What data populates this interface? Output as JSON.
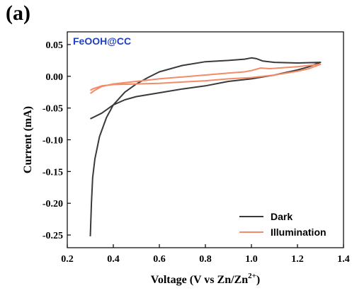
{
  "panel_label": "(a)",
  "chart_data": {
    "type": "line",
    "title": "",
    "annotation": "FeOOH@CC",
    "xlabel_main": "Voltage (V vs Zn/Zn",
    "xlabel_sup": "2+",
    "xlabel_end": ")",
    "ylabel": "Current (mA)",
    "xlim": [
      0.2,
      1.4
    ],
    "ylim": [
      -0.27,
      0.07
    ],
    "xticks": [
      0.2,
      0.4,
      0.6,
      0.8,
      1.0,
      1.2,
      1.4
    ],
    "xtick_labels": [
      "0.2",
      "0.4",
      "0.6",
      "0.8",
      "1.0",
      "1.2",
      "1.4"
    ],
    "yticks": [
      0.05,
      0.0,
      -0.05,
      -0.1,
      -0.15,
      -0.2,
      -0.25
    ],
    "ytick_labels": [
      "0.05",
      "0.00",
      "-0.05",
      "-0.10",
      "-0.15",
      "-0.20",
      "-0.25"
    ],
    "grid": false,
    "legend_position": "bottom-right",
    "series": [
      {
        "name": "Dark",
        "color": "#3a3a3a",
        "points": [
          [
            0.3,
            -0.252
          ],
          [
            0.305,
            -0.2
          ],
          [
            0.31,
            -0.16
          ],
          [
            0.32,
            -0.13
          ],
          [
            0.34,
            -0.095
          ],
          [
            0.37,
            -0.065
          ],
          [
            0.4,
            -0.045
          ],
          [
            0.45,
            -0.025
          ],
          [
            0.5,
            -0.012
          ],
          [
            0.55,
            -0.002
          ],
          [
            0.6,
            0.007
          ],
          [
            0.7,
            0.017
          ],
          [
            0.8,
            0.023
          ],
          [
            0.9,
            0.025
          ],
          [
            0.97,
            0.027
          ],
          [
            1.0,
            0.029
          ],
          [
            1.02,
            0.028
          ],
          [
            1.05,
            0.024
          ],
          [
            1.1,
            0.022
          ],
          [
            1.2,
            0.021
          ],
          [
            1.3,
            0.022
          ],
          [
            1.25,
            0.015
          ],
          [
            1.2,
            0.01
          ],
          [
            1.1,
            0.002
          ],
          [
            1.0,
            -0.004
          ],
          [
            0.9,
            -0.008
          ],
          [
            0.8,
            -0.015
          ],
          [
            0.7,
            -0.02
          ],
          [
            0.6,
            -0.026
          ],
          [
            0.5,
            -0.032
          ],
          [
            0.45,
            -0.037
          ],
          [
            0.4,
            -0.045
          ],
          [
            0.35,
            -0.058
          ],
          [
            0.3,
            -0.067
          ]
        ]
      },
      {
        "name": "Illumination",
        "color": "#f28c68",
        "points": [
          [
            0.3,
            -0.027
          ],
          [
            0.32,
            -0.022
          ],
          [
            0.35,
            -0.016
          ],
          [
            0.4,
            -0.012
          ],
          [
            0.5,
            -0.008
          ],
          [
            0.6,
            -0.004
          ],
          [
            0.7,
            -0.001
          ],
          [
            0.8,
            0.002
          ],
          [
            0.9,
            0.005
          ],
          [
            0.97,
            0.007
          ],
          [
            1.0,
            0.009
          ],
          [
            1.04,
            0.013
          ],
          [
            1.08,
            0.012
          ],
          [
            1.2,
            0.015
          ],
          [
            1.3,
            0.019
          ],
          [
            1.25,
            0.012
          ],
          [
            1.2,
            0.008
          ],
          [
            1.1,
            0.002
          ],
          [
            1.0,
            -0.002
          ],
          [
            0.9,
            -0.004
          ],
          [
            0.8,
            -0.007
          ],
          [
            0.7,
            -0.009
          ],
          [
            0.6,
            -0.011
          ],
          [
            0.5,
            -0.012
          ],
          [
            0.4,
            -0.013
          ],
          [
            0.35,
            -0.015
          ],
          [
            0.31,
            -0.02
          ],
          [
            0.3,
            -0.022
          ]
        ]
      }
    ]
  }
}
